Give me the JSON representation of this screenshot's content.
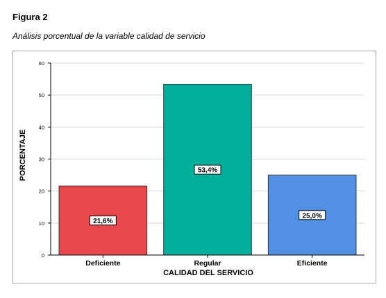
{
  "figure": {
    "label": "Figura 2",
    "caption": "Análisis porcentual de la variable calidad de servicio"
  },
  "chart_data": {
    "type": "bar",
    "title": "",
    "xlabel": "CALIDAD DEL SERVICIO",
    "ylabel": "PORCENTAJE",
    "categories": [
      "Deficiente",
      "Regular",
      "Eficiente"
    ],
    "values": [
      21.6,
      53.4,
      25.0
    ],
    "data_labels": [
      "21,6%",
      "53,4%",
      "25,0%"
    ],
    "colors": [
      "#e8474c",
      "#00b09b",
      "#5190e3"
    ],
    "ylim": [
      0,
      60
    ],
    "yticks": [
      0,
      10,
      20,
      30,
      40,
      50,
      60
    ],
    "grid": true,
    "legend": "none"
  }
}
